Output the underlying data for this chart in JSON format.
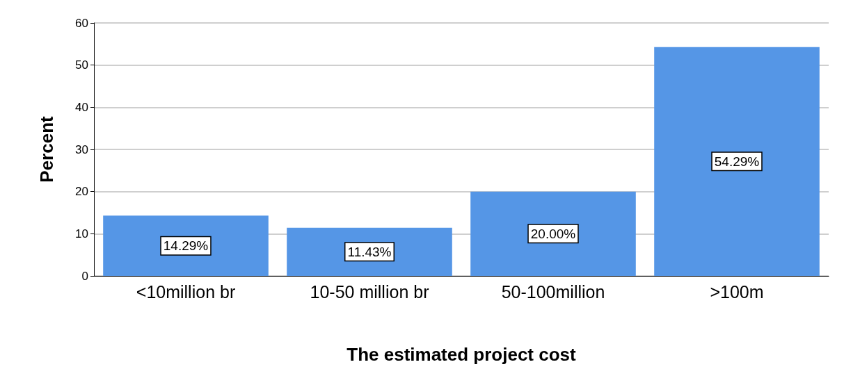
{
  "chart_data": {
    "type": "bar",
    "xlabel": "The estimated project cost",
    "ylabel": "Percent",
    "categories": [
      "<10million br",
      "10-50 million br",
      "50-100million",
      ">100m"
    ],
    "values": [
      14.29,
      11.43,
      20.0,
      54.29
    ],
    "value_labels": [
      "14.29%",
      "11.43%",
      "20.00%",
      "54.29%"
    ],
    "color": "#5596e6",
    "ylim": [
      0,
      60
    ],
    "yticks": [
      0,
      10,
      20,
      30,
      40,
      50,
      60
    ],
    "grid": "y"
  }
}
